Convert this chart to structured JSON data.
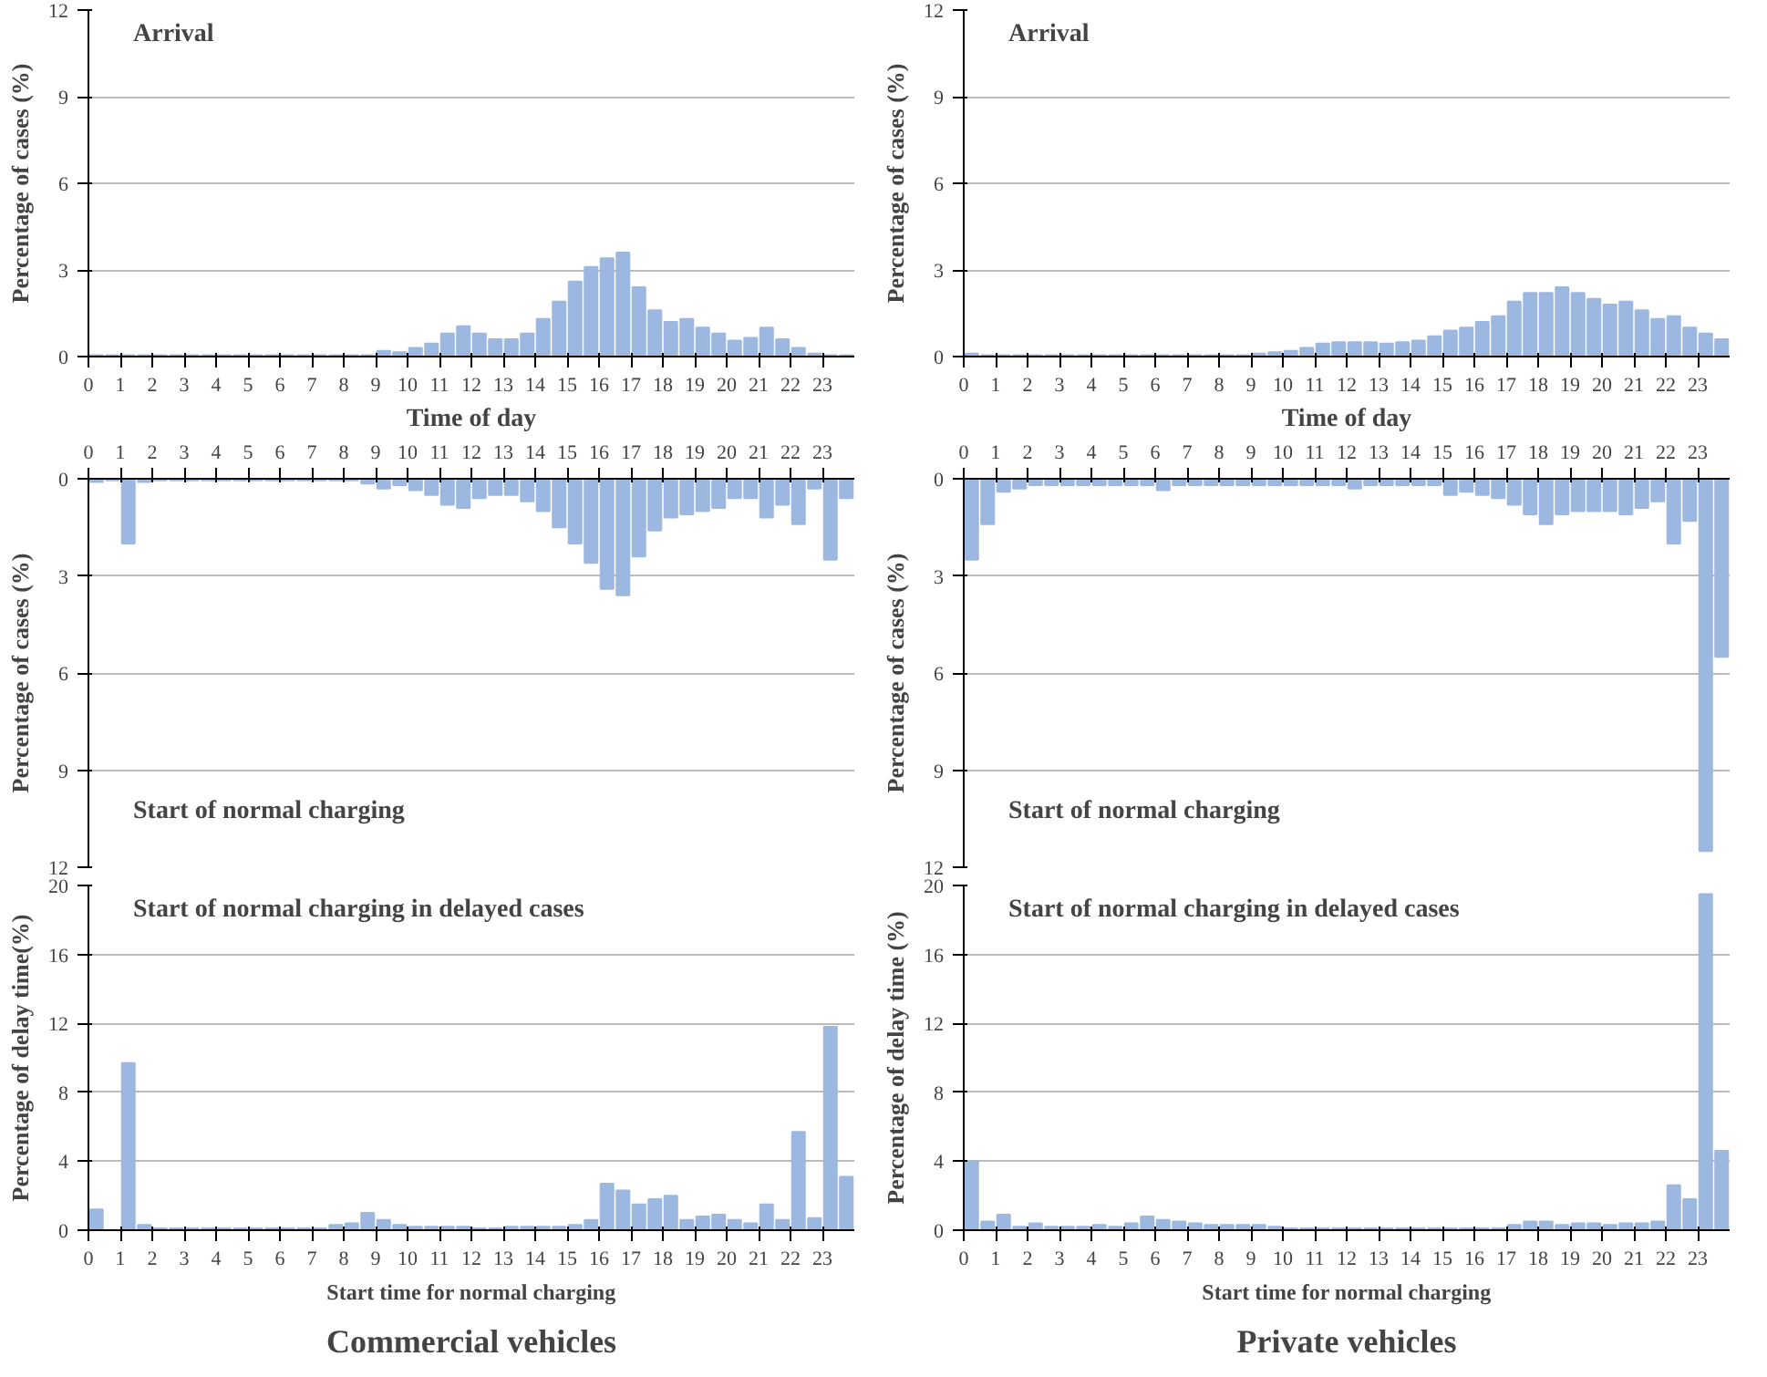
{
  "chart_data": [
    {
      "type": "bar",
      "title": "Arrival",
      "xlabel": "Time of day",
      "ylabel": "Percentage of cases (%)",
      "color": "#9cb8e0",
      "grid": "y",
      "ylim": [
        0,
        12
      ],
      "yticks": [
        0,
        3,
        6,
        9,
        12
      ],
      "xlim": [
        0,
        24
      ],
      "xticks": [
        0,
        1,
        2,
        3,
        4,
        5,
        6,
        7,
        8,
        9,
        10,
        11,
        12,
        13,
        14,
        15,
        16,
        17,
        18,
        19,
        20,
        21,
        22,
        23
      ],
      "x": [
        0.25,
        0.75,
        1.25,
        1.75,
        2.25,
        2.75,
        3.25,
        3.75,
        4.25,
        4.75,
        5.25,
        5.75,
        6.25,
        6.75,
        7.25,
        7.75,
        8.25,
        8.75,
        9.25,
        9.75,
        10.25,
        10.75,
        11.25,
        11.75,
        12.25,
        12.75,
        13.25,
        13.75,
        14.25,
        14.75,
        15.25,
        15.75,
        16.25,
        16.75,
        17.25,
        17.75,
        18.25,
        18.75,
        19.25,
        19.75,
        20.25,
        20.75,
        21.25,
        21.75,
        22.25,
        22.75,
        23.25,
        23.75
      ],
      "values": [
        0.05,
        0.05,
        0.05,
        0.05,
        0.05,
        0.05,
        0.05,
        0.05,
        0.05,
        0.05,
        0.05,
        0.05,
        0.05,
        0.05,
        0.05,
        0.05,
        0.05,
        0.05,
        0.2,
        0.15,
        0.3,
        0.45,
        0.8,
        1.05,
        0.8,
        0.6,
        0.6,
        0.8,
        1.3,
        1.9,
        2.6,
        3.1,
        3.4,
        3.6,
        2.4,
        1.6,
        1.2,
        1.3,
        1.0,
        0.8,
        0.55,
        0.65,
        1.0,
        0.6,
        0.3,
        0.1,
        0.05,
        0.05
      ]
    },
    {
      "type": "bar",
      "title": "Arrival",
      "xlabel": "Time of day",
      "ylabel": "Percentage of cases (%)",
      "color": "#9cb8e0",
      "grid": "y",
      "ylim": [
        0,
        12
      ],
      "yticks": [
        0,
        3,
        6,
        9,
        12
      ],
      "xlim": [
        0,
        24
      ],
      "xticks": [
        0,
        1,
        2,
        3,
        4,
        5,
        6,
        7,
        8,
        9,
        10,
        11,
        12,
        13,
        14,
        15,
        16,
        17,
        18,
        19,
        20,
        21,
        22,
        23
      ],
      "x": [
        0.25,
        0.75,
        1.25,
        1.75,
        2.25,
        2.75,
        3.25,
        3.75,
        4.25,
        4.75,
        5.25,
        5.75,
        6.25,
        6.75,
        7.25,
        7.75,
        8.25,
        8.75,
        9.25,
        9.75,
        10.25,
        10.75,
        11.25,
        11.75,
        12.25,
        12.75,
        13.25,
        13.75,
        14.25,
        14.75,
        15.25,
        15.75,
        16.25,
        16.75,
        17.25,
        17.75,
        18.25,
        18.75,
        19.25,
        19.75,
        20.25,
        20.75,
        21.25,
        21.75,
        22.25,
        22.75,
        23.25,
        23.75
      ],
      "values": [
        0.1,
        0.05,
        0.05,
        0.05,
        0.05,
        0.05,
        0.05,
        0.05,
        0.05,
        0.05,
        0.05,
        0.05,
        0.05,
        0.05,
        0.05,
        0.05,
        0.05,
        0.05,
        0.1,
        0.15,
        0.2,
        0.3,
        0.45,
        0.5,
        0.5,
        0.5,
        0.45,
        0.5,
        0.55,
        0.7,
        0.9,
        1.0,
        1.2,
        1.4,
        1.9,
        2.2,
        2.2,
        2.4,
        2.2,
        2.0,
        1.8,
        1.9,
        1.6,
        1.3,
        1.4,
        1.0,
        0.8,
        0.6
      ]
    },
    {
      "type": "bar",
      "title": "Start of normal charging",
      "ylabel": "Percentage of cases (%)",
      "color": "#9cb8e0",
      "grid": "y",
      "ylim": [
        12,
        0
      ],
      "yticks": [
        0,
        3,
        6,
        9,
        12
      ],
      "xlim": [
        0,
        24
      ],
      "xticks": [
        0,
        1,
        2,
        3,
        4,
        5,
        6,
        7,
        8,
        9,
        10,
        11,
        12,
        13,
        14,
        15,
        16,
        17,
        18,
        19,
        20,
        21,
        22,
        23
      ],
      "x": [
        0.25,
        0.75,
        1.25,
        1.75,
        2.25,
        2.75,
        3.25,
        3.75,
        4.25,
        4.75,
        5.25,
        5.75,
        6.25,
        6.75,
        7.25,
        7.75,
        8.25,
        8.75,
        9.25,
        9.75,
        10.25,
        10.75,
        11.25,
        11.75,
        12.25,
        12.75,
        13.25,
        13.75,
        14.25,
        14.75,
        15.25,
        15.75,
        16.25,
        16.75,
        17.25,
        17.75,
        18.25,
        18.75,
        19.25,
        19.75,
        20.25,
        20.75,
        21.25,
        21.75,
        22.25,
        22.75,
        23.25,
        23.75
      ],
      "values": [
        0.1,
        0.05,
        2.0,
        0.1,
        0.05,
        0.05,
        0.05,
        0.05,
        0.05,
        0.05,
        0.05,
        0.05,
        0.05,
        0.05,
        0.05,
        0.05,
        0.05,
        0.15,
        0.3,
        0.2,
        0.35,
        0.5,
        0.8,
        0.9,
        0.6,
        0.5,
        0.5,
        0.7,
        1.0,
        1.5,
        2.0,
        2.6,
        3.4,
        3.6,
        2.4,
        1.6,
        1.2,
        1.1,
        1.0,
        0.9,
        0.6,
        0.6,
        1.2,
        0.8,
        1.4,
        0.3,
        2.5,
        0.6
      ]
    },
    {
      "type": "bar",
      "title": "Start of normal charging",
      "ylabel": "Percentage of cases (%)",
      "color": "#9cb8e0",
      "grid": "y",
      "ylim": [
        12,
        0
      ],
      "yticks": [
        0,
        3,
        6,
        9,
        12
      ],
      "xlim": [
        0,
        24
      ],
      "xticks": [
        0,
        1,
        2,
        3,
        4,
        5,
        6,
        7,
        8,
        9,
        10,
        11,
        12,
        13,
        14,
        15,
        16,
        17,
        18,
        19,
        20,
        21,
        22,
        23
      ],
      "x": [
        0.25,
        0.75,
        1.25,
        1.75,
        2.25,
        2.75,
        3.25,
        3.75,
        4.25,
        4.75,
        5.25,
        5.75,
        6.25,
        6.75,
        7.25,
        7.75,
        8.25,
        8.75,
        9.25,
        9.75,
        10.25,
        10.75,
        11.25,
        11.75,
        12.25,
        12.75,
        13.25,
        13.75,
        14.25,
        14.75,
        15.25,
        15.75,
        16.25,
        16.75,
        17.25,
        17.75,
        18.25,
        18.75,
        19.25,
        19.75,
        20.25,
        20.75,
        21.25,
        21.75,
        22.25,
        22.75,
        23.25,
        23.75
      ],
      "values": [
        2.5,
        1.4,
        0.4,
        0.3,
        0.2,
        0.2,
        0.2,
        0.2,
        0.2,
        0.2,
        0.2,
        0.2,
        0.35,
        0.2,
        0.2,
        0.2,
        0.2,
        0.2,
        0.2,
        0.2,
        0.2,
        0.2,
        0.2,
        0.2,
        0.3,
        0.2,
        0.2,
        0.2,
        0.2,
        0.2,
        0.5,
        0.4,
        0.5,
        0.6,
        0.8,
        1.1,
        1.4,
        1.1,
        1.0,
        1.0,
        1.0,
        1.1,
        0.9,
        0.7,
        2.0,
        1.3,
        11.5,
        5.5
      ]
    },
    {
      "type": "bar",
      "title": "Start of normal charging in delayed cases",
      "xlabel": "Start time for normal charging",
      "ylabel": "Percentage of delay time(%)",
      "annotations": [
        "Commercial vehicles"
      ],
      "color": "#9cb8e0",
      "grid": "y",
      "ylim": [
        0,
        20
      ],
      "yticks": [
        0,
        4,
        8,
        12,
        16,
        20
      ],
      "xlim": [
        0,
        24
      ],
      "xticks": [
        0,
        1,
        2,
        3,
        4,
        5,
        6,
        7,
        8,
        9,
        10,
        11,
        12,
        13,
        14,
        15,
        16,
        17,
        18,
        19,
        20,
        21,
        22,
        23
      ],
      "x": [
        0.25,
        0.75,
        1.25,
        1.75,
        2.25,
        2.75,
        3.25,
        3.75,
        4.25,
        4.75,
        5.25,
        5.75,
        6.25,
        6.75,
        7.25,
        7.75,
        8.25,
        8.75,
        9.25,
        9.75,
        10.25,
        10.75,
        11.25,
        11.75,
        12.25,
        12.75,
        13.25,
        13.75,
        14.25,
        14.75,
        15.25,
        15.75,
        16.25,
        16.75,
        17.25,
        17.75,
        18.25,
        18.75,
        19.25,
        19.75,
        20.25,
        20.75,
        21.25,
        21.75,
        22.25,
        22.75,
        23.25,
        23.75
      ],
      "values": [
        1.2,
        0,
        9.7,
        0.3,
        0.1,
        0.1,
        0.1,
        0.1,
        0.1,
        0.1,
        0.1,
        0.1,
        0.1,
        0.1,
        0.1,
        0.3,
        0.4,
        1.0,
        0.6,
        0.3,
        0.2,
        0.2,
        0.2,
        0.2,
        0.1,
        0.1,
        0.2,
        0.2,
        0.2,
        0.2,
        0.3,
        0.6,
        2.7,
        2.3,
        1.5,
        1.8,
        2.0,
        0.6,
        0.8,
        0.9,
        0.6,
        0.4,
        1.5,
        0.6,
        5.7,
        0.7,
        11.8,
        3.1
      ]
    },
    {
      "type": "bar",
      "title": "Start of normal charging in delayed cases",
      "xlabel": "Start time for normal charging",
      "ylabel": "Percentage of delay time (%)",
      "annotations": [
        "Private vehicles"
      ],
      "color": "#9cb8e0",
      "grid": "y",
      "ylim": [
        0,
        20
      ],
      "yticks": [
        0,
        4,
        8,
        12,
        16,
        20
      ],
      "xlim": [
        0,
        24
      ],
      "xticks": [
        0,
        1,
        2,
        3,
        4,
        5,
        6,
        7,
        8,
        9,
        10,
        11,
        12,
        13,
        14,
        15,
        16,
        17,
        18,
        19,
        20,
        21,
        22,
        23
      ],
      "x": [
        0.25,
        0.75,
        1.25,
        1.75,
        2.25,
        2.75,
        3.25,
        3.75,
        4.25,
        4.75,
        5.25,
        5.75,
        6.25,
        6.75,
        7.25,
        7.75,
        8.25,
        8.75,
        9.25,
        9.75,
        10.25,
        10.75,
        11.25,
        11.75,
        12.25,
        12.75,
        13.25,
        13.75,
        14.25,
        14.75,
        15.25,
        15.75,
        16.25,
        16.75,
        17.25,
        17.75,
        18.25,
        18.75,
        19.25,
        19.75,
        20.25,
        20.75,
        21.25,
        21.75,
        22.25,
        22.75,
        23.25,
        23.75
      ],
      "values": [
        4.0,
        0.5,
        0.9,
        0.2,
        0.4,
        0.2,
        0.2,
        0.2,
        0.3,
        0.2,
        0.4,
        0.8,
        0.6,
        0.5,
        0.4,
        0.3,
        0.3,
        0.3,
        0.3,
        0.2,
        0.1,
        0.1,
        0.1,
        0.1,
        0.1,
        0.1,
        0.1,
        0.1,
        0.1,
        0.1,
        0.1,
        0.1,
        0.1,
        0.1,
        0.3,
        0.5,
        0.5,
        0.3,
        0.4,
        0.4,
        0.3,
        0.4,
        0.4,
        0.5,
        2.6,
        1.8,
        19.5,
        4.6
      ]
    }
  ]
}
